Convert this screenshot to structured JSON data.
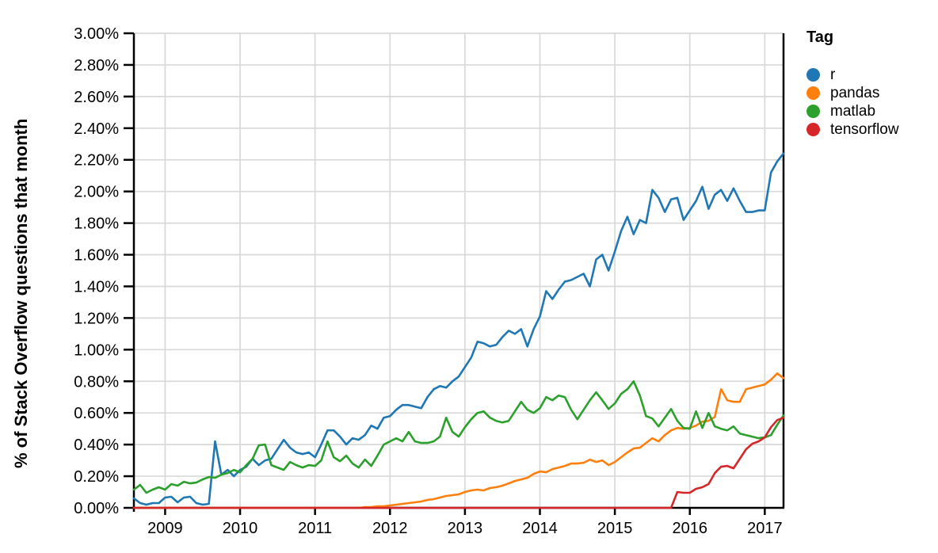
{
  "legend": {
    "title": "Tag"
  },
  "colors": {
    "grid": "#d9d9d9",
    "axis": "#000000",
    "background": "#ffffff"
  },
  "chart_data": {
    "type": "line",
    "title": "",
    "ylabel": "% of Stack Overflow questions that month",
    "xlabel": "",
    "interval": "monthly",
    "start": "2008-08",
    "end": "2017-04",
    "grid": true,
    "legend_position": "right",
    "legend_title": "Tag",
    "x_axis": {
      "min": 2008.5833,
      "max": 2017.25,
      "ticks": [
        {
          "value": 2009,
          "label": "2009"
        },
        {
          "value": 2010,
          "label": "2010"
        },
        {
          "value": 2011,
          "label": "2011"
        },
        {
          "value": 2012,
          "label": "2012"
        },
        {
          "value": 2013,
          "label": "2013"
        },
        {
          "value": 2014,
          "label": "2014"
        },
        {
          "value": 2015,
          "label": "2015"
        },
        {
          "value": 2016,
          "label": "2016"
        },
        {
          "value": 2017,
          "label": "2017"
        }
      ]
    },
    "y_axis": {
      "min": 0,
      "max": 3,
      "unit": "%",
      "ticks": [
        {
          "value": 0.0,
          "label": "0.00%"
        },
        {
          "value": 0.2,
          "label": "0.20%"
        },
        {
          "value": 0.4,
          "label": "0.40%"
        },
        {
          "value": 0.6,
          "label": "0.60%"
        },
        {
          "value": 0.8,
          "label": "0.80%"
        },
        {
          "value": 1.0,
          "label": "1.00%"
        },
        {
          "value": 1.2,
          "label": "1.20%"
        },
        {
          "value": 1.4,
          "label": "1.40%"
        },
        {
          "value": 1.6,
          "label": "1.60%"
        },
        {
          "value": 1.8,
          "label": "1.80%"
        },
        {
          "value": 2.0,
          "label": "2.00%"
        },
        {
          "value": 2.2,
          "label": "2.20%"
        },
        {
          "value": 2.4,
          "label": "2.40%"
        },
        {
          "value": 2.6,
          "label": "2.60%"
        },
        {
          "value": 2.8,
          "label": "2.80%"
        },
        {
          "value": 3.0,
          "label": "3.00%"
        }
      ]
    },
    "series": [
      {
        "name": "r",
        "color": "#1f77b4",
        "values": [
          0.06,
          0.03,
          0.02,
          0.03,
          0.03,
          0.065,
          0.07,
          0.035,
          0.065,
          0.07,
          0.03,
          0.02,
          0.025,
          0.42,
          0.21,
          0.24,
          0.2,
          0.24,
          0.26,
          0.31,
          0.27,
          0.3,
          0.31,
          0.37,
          0.43,
          0.38,
          0.35,
          0.34,
          0.35,
          0.32,
          0.4,
          0.49,
          0.49,
          0.45,
          0.4,
          0.44,
          0.43,
          0.46,
          0.52,
          0.5,
          0.57,
          0.58,
          0.62,
          0.65,
          0.65,
          0.64,
          0.63,
          0.7,
          0.75,
          0.77,
          0.76,
          0.8,
          0.83,
          0.89,
          0.95,
          1.05,
          1.04,
          1.02,
          1.03,
          1.08,
          1.12,
          1.1,
          1.13,
          1.02,
          1.13,
          1.21,
          1.37,
          1.32,
          1.38,
          1.43,
          1.44,
          1.46,
          1.48,
          1.4,
          1.57,
          1.6,
          1.5,
          1.62,
          1.75,
          1.84,
          1.73,
          1.82,
          1.8,
          2.01,
          1.96,
          1.87,
          1.95,
          1.96,
          1.82,
          1.88,
          1.94,
          2.03,
          1.89,
          1.98,
          2.01,
          1.94,
          2.02,
          1.94,
          1.87,
          1.87,
          1.88,
          1.88,
          2.12,
          2.19,
          2.24
        ]
      },
      {
        "name": "pandas",
        "color": "#ff7f0e",
        "values": [
          0,
          0,
          0,
          0,
          0,
          0,
          0,
          0,
          0,
          0,
          0,
          0,
          0,
          0,
          0,
          0,
          0,
          0,
          0,
          0,
          0,
          0,
          0,
          0,
          0,
          0,
          0,
          0,
          0,
          0,
          0,
          0,
          0,
          0,
          0,
          0,
          0,
          0.005,
          0.005,
          0.01,
          0.01,
          0.015,
          0.02,
          0.025,
          0.03,
          0.035,
          0.04,
          0.05,
          0.055,
          0.065,
          0.075,
          0.08,
          0.085,
          0.1,
          0.11,
          0.115,
          0.11,
          0.125,
          0.13,
          0.14,
          0.155,
          0.17,
          0.18,
          0.19,
          0.215,
          0.23,
          0.225,
          0.245,
          0.255,
          0.265,
          0.28,
          0.28,
          0.285,
          0.305,
          0.29,
          0.3,
          0.27,
          0.29,
          0.32,
          0.35,
          0.375,
          0.38,
          0.41,
          0.44,
          0.42,
          0.46,
          0.49,
          0.505,
          0.5,
          0.505,
          0.52,
          0.545,
          0.55,
          0.575,
          0.75,
          0.68,
          0.67,
          0.67,
          0.75,
          0.76,
          0.77,
          0.78,
          0.81,
          0.85,
          0.82
        ]
      },
      {
        "name": "matlab",
        "color": "#2ca02c",
        "values": [
          0.115,
          0.145,
          0.095,
          0.115,
          0.13,
          0.115,
          0.15,
          0.14,
          0.165,
          0.155,
          0.16,
          0.18,
          0.195,
          0.19,
          0.21,
          0.22,
          0.24,
          0.225,
          0.27,
          0.31,
          0.395,
          0.4,
          0.27,
          0.255,
          0.24,
          0.29,
          0.27,
          0.255,
          0.27,
          0.265,
          0.3,
          0.42,
          0.32,
          0.295,
          0.33,
          0.28,
          0.255,
          0.305,
          0.265,
          0.33,
          0.4,
          0.42,
          0.44,
          0.42,
          0.48,
          0.42,
          0.41,
          0.41,
          0.42,
          0.45,
          0.57,
          0.48,
          0.45,
          0.51,
          0.56,
          0.6,
          0.61,
          0.57,
          0.55,
          0.54,
          0.55,
          0.61,
          0.67,
          0.62,
          0.6,
          0.63,
          0.7,
          0.68,
          0.71,
          0.7,
          0.62,
          0.56,
          0.62,
          0.68,
          0.73,
          0.68,
          0.625,
          0.66,
          0.72,
          0.75,
          0.8,
          0.71,
          0.58,
          0.565,
          0.515,
          0.57,
          0.625,
          0.55,
          0.505,
          0.5,
          0.61,
          0.505,
          0.6,
          0.515,
          0.5,
          0.49,
          0.515,
          0.47,
          0.46,
          0.45,
          0.44,
          0.445,
          0.46,
          0.525,
          0.585
        ]
      },
      {
        "name": "tensorflow",
        "color": "#d62728",
        "values": [
          0,
          0,
          0,
          0,
          0,
          0,
          0,
          0,
          0,
          0,
          0,
          0,
          0,
          0,
          0,
          0,
          0,
          0,
          0,
          0,
          0,
          0,
          0,
          0,
          0,
          0,
          0,
          0,
          0,
          0,
          0,
          0,
          0,
          0,
          0,
          0,
          0,
          0,
          0,
          0,
          0,
          0,
          0,
          0,
          0,
          0,
          0,
          0,
          0,
          0,
          0,
          0,
          0,
          0,
          0,
          0,
          0,
          0,
          0,
          0,
          0,
          0,
          0,
          0,
          0,
          0,
          0,
          0,
          0,
          0,
          0,
          0,
          0,
          0,
          0,
          0,
          0,
          0,
          0,
          0,
          0,
          0,
          0,
          0,
          0,
          0,
          0,
          0.1,
          0.095,
          0.095,
          0.12,
          0.13,
          0.15,
          0.22,
          0.26,
          0.265,
          0.25,
          0.31,
          0.37,
          0.405,
          0.42,
          0.445,
          0.51,
          0.555,
          0.57
        ]
      }
    ]
  }
}
